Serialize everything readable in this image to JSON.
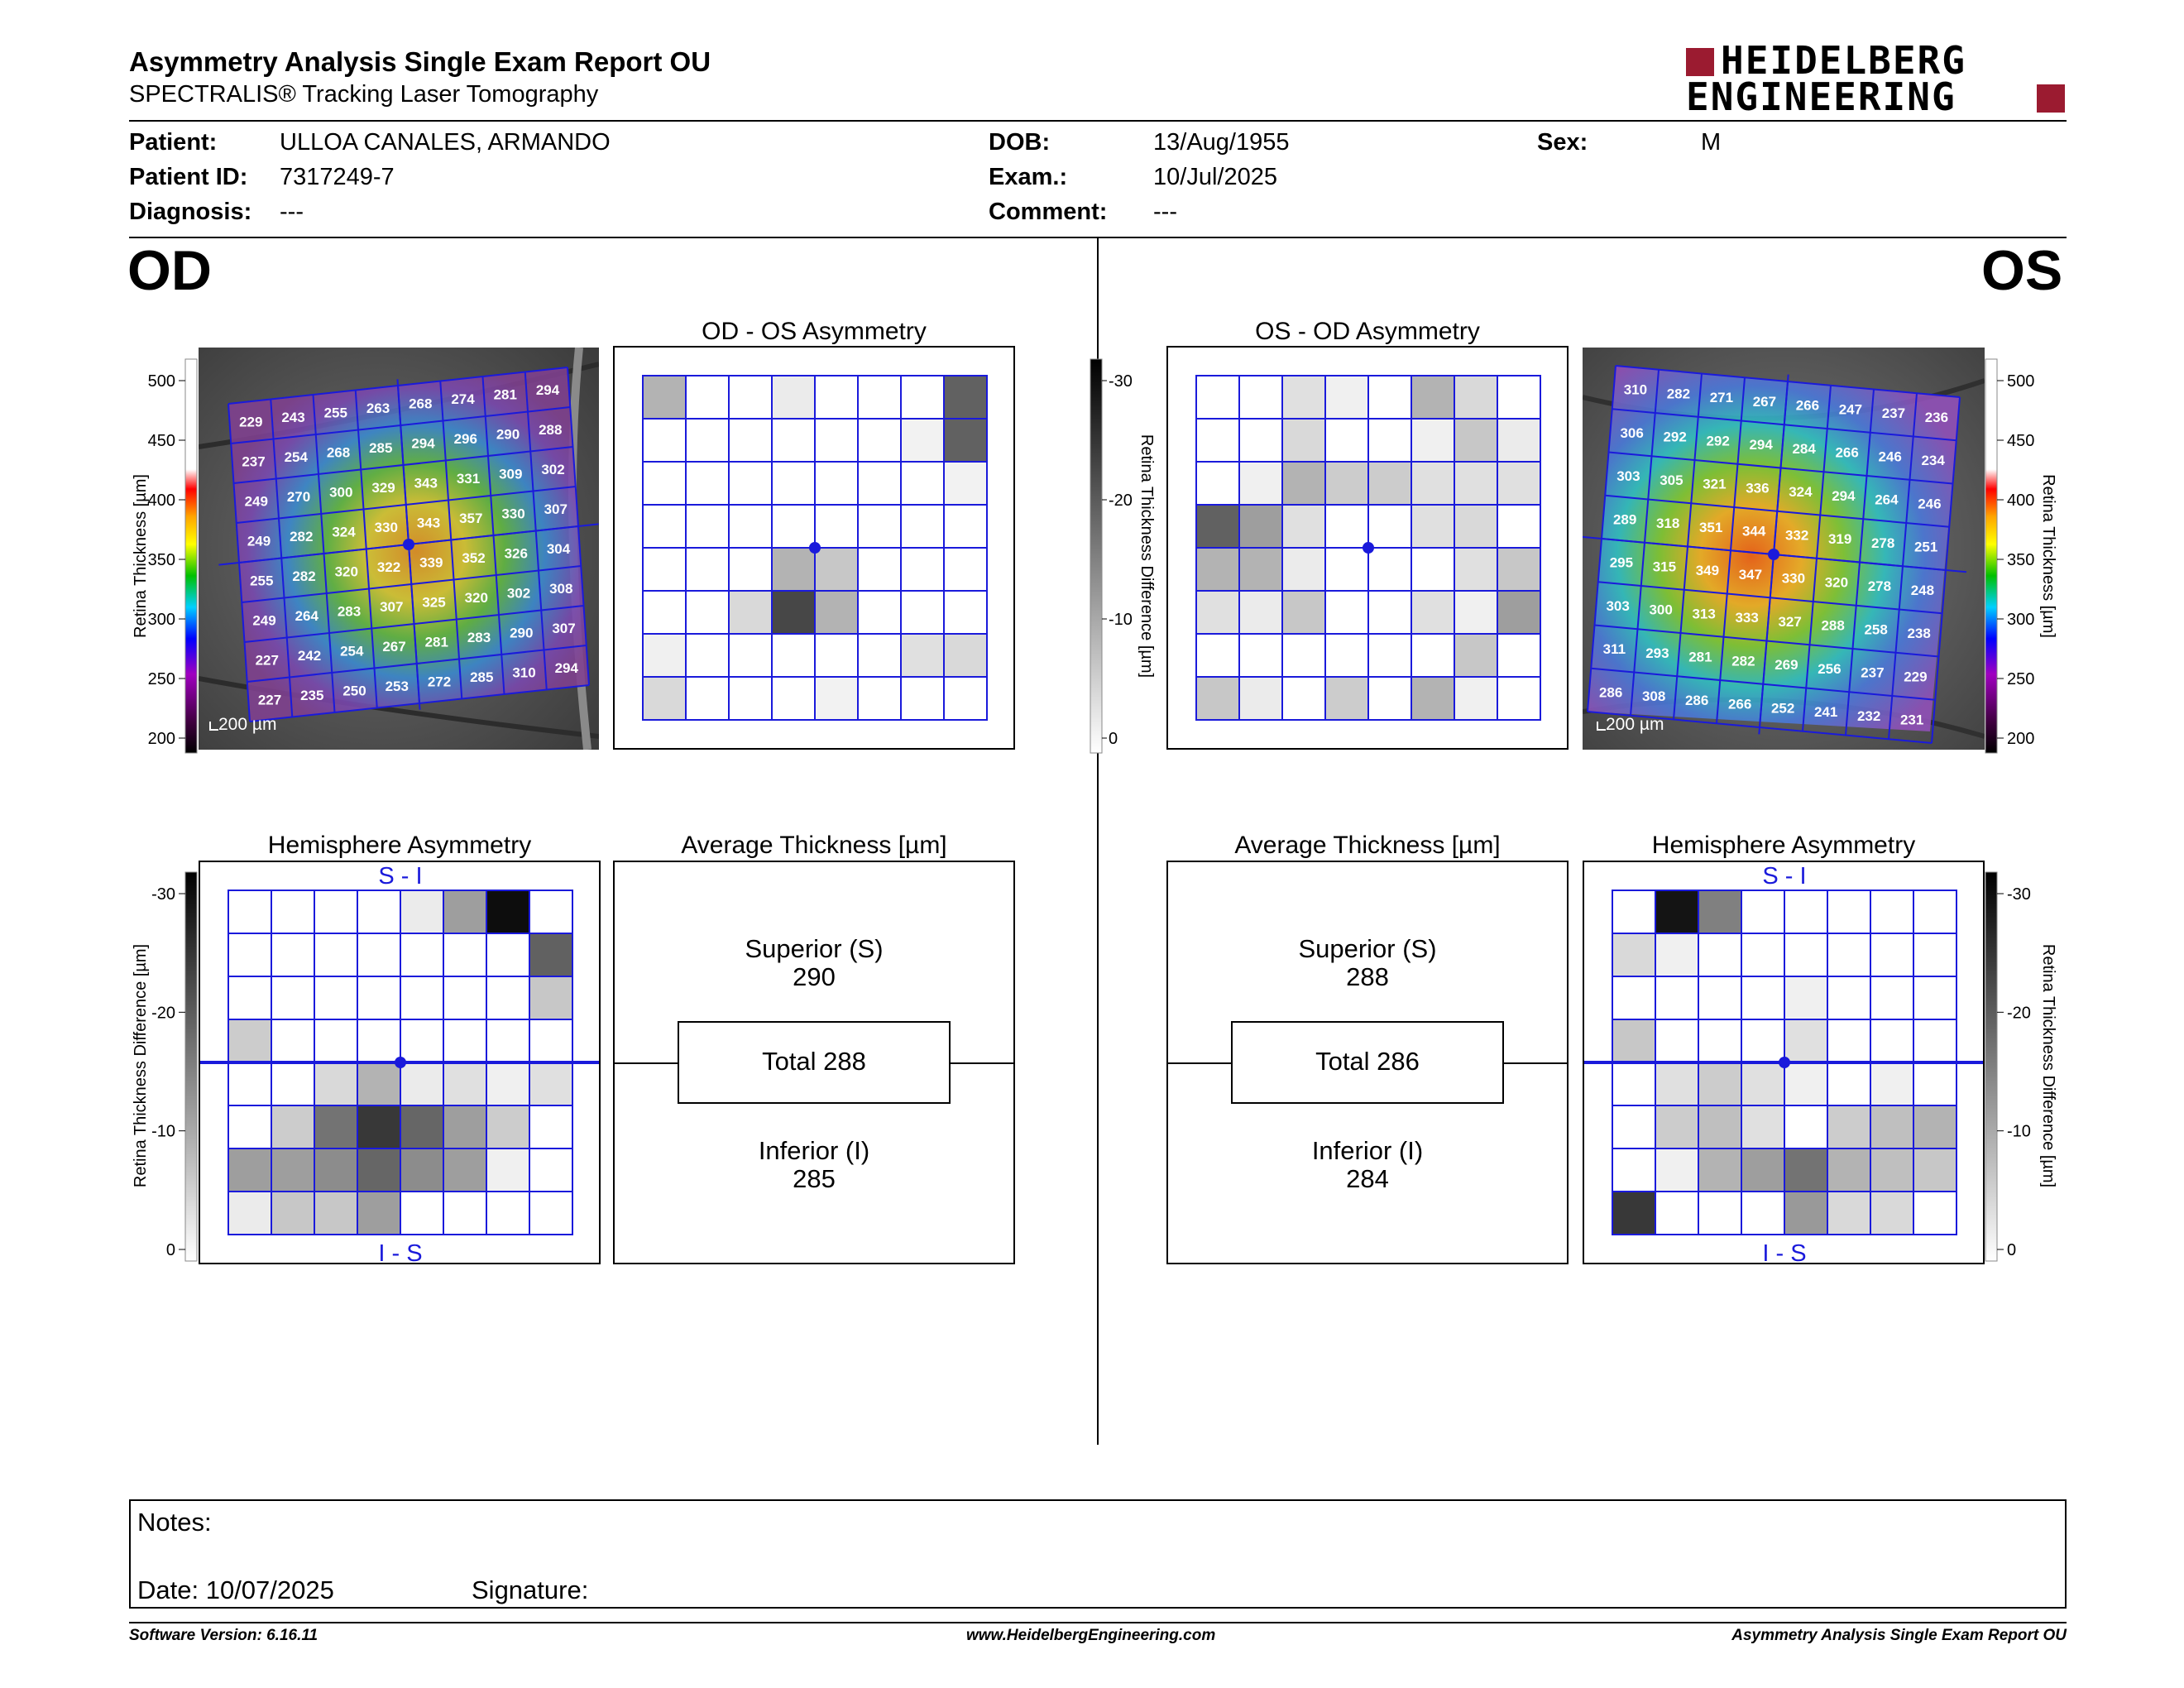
{
  "header": {
    "title": "Asymmetry Analysis Single Exam Report OU",
    "subtitle": "SPECTRALIS® Tracking Laser Tomography",
    "logo_line1": "HEIDELBERG",
    "logo_line2": "ENGINEERING"
  },
  "patient": {
    "patient_label": "Patient:",
    "patient_value": "ULLOA CANALES, ARMANDO",
    "id_label": "Patient ID:",
    "id_value": "7317249-7",
    "diagnosis_label": "Diagnosis:",
    "diagnosis_value": "---",
    "dob_label": "DOB:",
    "dob_value": "13/Aug/1955",
    "exam_label": "Exam.:",
    "exam_value": "10/Jul/2025",
    "comment_label": "Comment:",
    "comment_value": "---",
    "sex_label": "Sex:",
    "sex_value": "M"
  },
  "eyes": {
    "od": "OD",
    "os": "OS"
  },
  "panel_titles": {
    "od_os_asym": "OD - OS Asymmetry",
    "os_od_asym": "OS - OD Asymmetry",
    "hemi": "Hemisphere Asymmetry",
    "avg": "Average Thickness [µm]"
  },
  "axis_labels": {
    "thickness": "Retina  Thickness [µm]",
    "difference": "Retina Thickness Difference [µm]"
  },
  "scale_bar": "200 µm",
  "hemi_labels": {
    "top": "S - I",
    "bottom": "I - S"
  },
  "thickness_ticks": [
    "500",
    "450",
    "400",
    "350",
    "300",
    "250",
    "200"
  ],
  "diff_ticks": [
    "-30",
    "-20",
    "-10",
    "0"
  ],
  "od_grid": [
    [
      "229",
      "243",
      "255",
      "263",
      "268",
      "274",
      "281",
      "294"
    ],
    [
      "237",
      "254",
      "268",
      "285",
      "294",
      "296",
      "290",
      "288"
    ],
    [
      "249",
      "270",
      "300",
      "329",
      "343",
      "331",
      "309",
      "302"
    ],
    [
      "249",
      "282",
      "324",
      "330",
      "343",
      "357",
      "330",
      "307"
    ],
    [
      "255",
      "282",
      "320",
      "322",
      "339",
      "352",
      "326",
      "304"
    ],
    [
      "249",
      "264",
      "283",
      "307",
      "325",
      "320",
      "302",
      "308"
    ],
    [
      "227",
      "242",
      "254",
      "267",
      "281",
      "283",
      "290",
      "307"
    ],
    [
      "227",
      "235",
      "250",
      "253",
      "272",
      "285",
      "310",
      "294"
    ]
  ],
  "os_grid": [
    [
      "310",
      "282",
      "271",
      "267",
      "266",
      "247",
      "237",
      "236"
    ],
    [
      "306",
      "292",
      "292",
      "294",
      "284",
      "266",
      "246",
      "234"
    ],
    [
      "303",
      "305",
      "321",
      "336",
      "324",
      "294",
      "264",
      "246"
    ],
    [
      "289",
      "318",
      "351",
      "344",
      "332",
      "319",
      "278",
      "251"
    ],
    [
      "295",
      "315",
      "349",
      "347",
      "330",
      "320",
      "278",
      "248"
    ],
    [
      "303",
      "300",
      "313",
      "333",
      "327",
      "288",
      "258",
      "238"
    ],
    [
      "311",
      "293",
      "281",
      "282",
      "269",
      "256",
      "237",
      "229"
    ],
    [
      "286",
      "308",
      "286",
      "266",
      "252",
      "241",
      "232",
      "231"
    ]
  ],
  "od_asym_shades": [
    [
      0.3,
      0,
      0,
      0.08,
      0,
      0,
      0,
      0.62
    ],
    [
      0,
      0,
      0,
      0,
      0,
      0,
      0.05,
      0.62
    ],
    [
      0,
      0,
      0,
      0,
      0,
      0,
      0,
      0.05
    ],
    [
      0,
      0,
      0,
      0,
      0,
      0,
      0,
      0
    ],
    [
      0,
      0,
      0,
      0.3,
      0.22,
      0,
      0,
      0
    ],
    [
      0,
      0,
      0.15,
      0.72,
      0.3,
      0,
      0,
      0
    ],
    [
      0.06,
      0,
      0,
      0,
      0,
      0,
      0.12,
      0.15
    ],
    [
      0.15,
      0,
      0,
      0,
      0.05,
      0,
      0,
      0
    ]
  ],
  "os_asym_shades": [
    [
      0,
      0,
      0.12,
      0.06,
      0,
      0.3,
      0.15,
      0
    ],
    [
      0,
      0,
      0.15,
      0,
      0,
      0.06,
      0.22,
      0.08
    ],
    [
      0,
      0.06,
      0.3,
      0.2,
      0.2,
      0.12,
      0.12,
      0.12
    ],
    [
      0.62,
      0.38,
      0.12,
      0,
      0,
      0.12,
      0.15,
      0
    ],
    [
      0.3,
      0.3,
      0.08,
      0,
      0,
      0,
      0.12,
      0.22
    ],
    [
      0.12,
      0.08,
      0.22,
      0,
      0,
      0.12,
      0.06,
      0.38
    ],
    [
      0,
      0,
      0,
      0,
      0,
      0,
      0.22,
      0
    ],
    [
      0.22,
      0.08,
      0,
      0.2,
      0,
      0.3,
      0.06,
      0
    ]
  ],
  "od_hemi_shades": [
    [
      0,
      0,
      0,
      0,
      0.08,
      0.38,
      0.95,
      0
    ],
    [
      0,
      0,
      0,
      0,
      0,
      0,
      0,
      0.62
    ],
    [
      0,
      0,
      0,
      0,
      0,
      0,
      0,
      0.22
    ],
    [
      0.2,
      0,
      0,
      0,
      0,
      0,
      0,
      0
    ],
    [
      0,
      0,
      0.15,
      0.3,
      0.08,
      0.12,
      0.06,
      0.12
    ],
    [
      0,
      0.2,
      0.55,
      0.78,
      0.6,
      0.38,
      0.2,
      0
    ],
    [
      0.38,
      0.38,
      0.45,
      0.6,
      0.45,
      0.38,
      0.06,
      0
    ],
    [
      0.08,
      0.22,
      0.22,
      0.38,
      0,
      0,
      0,
      0
    ]
  ],
  "os_hemi_shades": [
    [
      0,
      0.92,
      0.5,
      0,
      0,
      0,
      0,
      0
    ],
    [
      0.15,
      0.06,
      0,
      0,
      0,
      0,
      0,
      0
    ],
    [
      0,
      0,
      0,
      0,
      0.06,
      0,
      0,
      0
    ],
    [
      0.22,
      0,
      0,
      0,
      0.12,
      0,
      0,
      0
    ],
    [
      0,
      0.12,
      0.2,
      0.12,
      0.06,
      0,
      0.06,
      0
    ],
    [
      0,
      0.2,
      0.25,
      0.12,
      0,
      0.2,
      0.25,
      0.3
    ],
    [
      0,
      0.06,
      0.3,
      0.38,
      0.55,
      0.3,
      0.25,
      0.22
    ],
    [
      0.78,
      0,
      0,
      0,
      0.4,
      0.15,
      0.15,
      0
    ]
  ],
  "od_avg": {
    "superior_label": "Superior (S)",
    "superior": "290",
    "total": "Total 288",
    "inferior_label": "Inferior (I)",
    "inferior": "285"
  },
  "os_avg": {
    "superior_label": "Superior (S)",
    "superior": "288",
    "total": "Total 286",
    "inferior_label": "Inferior (I)",
    "inferior": "284"
  },
  "notes": {
    "notes_label": "Notes:",
    "date_label": "Date: 10/07/2025",
    "signature_label": "Signature:"
  },
  "footer": {
    "version": "Software Version: 6.16.11",
    "website": "www.HeidelbergEngineering.com",
    "report": "Asymmetry Analysis Single Exam Report OU"
  }
}
